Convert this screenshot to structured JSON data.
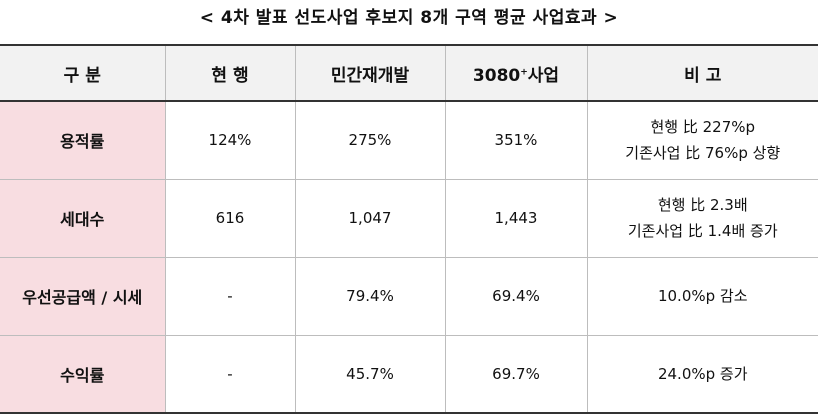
{
  "title": "< 4차 발표 선도사업 후보지 8개 구역 평균 사업효과 >",
  "headers": {
    "category": "구 분",
    "current": "현 행",
    "private_redev": "민간재개발",
    "program_main": "3080",
    "program_sup": "+",
    "program_suffix": "사업",
    "remarks": "비 고"
  },
  "rows": [
    {
      "category": "용적률",
      "current": "124%",
      "private_redev": "275%",
      "program": "351%",
      "remarks": [
        "현행 比 227%p",
        "기존사업 比 76%p 상향"
      ]
    },
    {
      "category": "세대수",
      "current": "616",
      "private_redev": "1,047",
      "program": "1,443",
      "remarks": [
        "현행 比 2.3배",
        "기존사업 比 1.4배 증가"
      ]
    },
    {
      "category": "우선공급액 / 시세",
      "current": "-",
      "private_redev": "79.4%",
      "program": "69.4%",
      "remarks": [
        "10.0%p 감소"
      ]
    },
    {
      "category": "수익률",
      "current": "-",
      "private_redev": "45.7%",
      "program": "69.7%",
      "remarks": [
        "24.0%p 증가"
      ]
    }
  ],
  "colors": {
    "header_bg": "#f2f2f2",
    "category_bg": "#f8dde1",
    "rule": "#333333",
    "grid_line": "#bdbdbd"
  }
}
